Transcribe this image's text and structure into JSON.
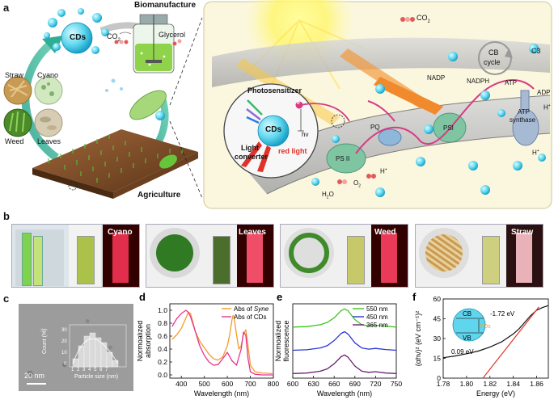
{
  "panel_a": {
    "label": "a",
    "biomanufacture": "Biomanufacture",
    "agriculture": "Agriculture",
    "cds": "CDs",
    "co2_left": "CO",
    "co2_sub": "2",
    "glycerol": "Glycerol",
    "sources": [
      "Straw",
      "Cyano",
      "Weed",
      "Leaves"
    ],
    "inset": {
      "photosensitizer": "Photosensitizer",
      "cds": "CDs",
      "light_converter_1": "Light",
      "light_converter_2": "converter",
      "hv": "hν",
      "red_light": "red light",
      "e": "e"
    },
    "pathway": {
      "co2": "CO",
      "co2_sub": "2",
      "cb_cycle_1": "CB",
      "cb_cycle_2": "cycle",
      "c3": "C3",
      "nadp": "NADP",
      "nadph": "NADPH",
      "atp": "ATP",
      "adp": "ADP",
      "atp_synthase_1": "ATP",
      "atp_synthase_2": "synthase",
      "psi": "PSI",
      "psii": "PS II",
      "pq": "PQ",
      "h2o": "H",
      "h2o_sub": "2",
      "h2o_o": "O",
      "o2": "O",
      "o2_sub": "2",
      "h": "H",
      "h_plus": "+"
    }
  },
  "panel_b": {
    "label": "b",
    "tiles": [
      "Cyano",
      "Leaves",
      "Weed",
      "Straw"
    ]
  },
  "panel_c": {
    "label": "c",
    "scale_bar": "20 nm",
    "inset_ylabel": "Count (%)",
    "inset_xlabel": "Particle size (nm)",
    "inset_yticks": [
      "0",
      "10",
      "20",
      "30"
    ],
    "inset_xticks": [
      "1",
      "2",
      "3",
      "4",
      "5",
      "6",
      "7"
    ]
  },
  "colors": {
    "orange": "#f39c2a",
    "magenta": "#e8338f",
    "green": "#3ec61d",
    "blue": "#2a36d4",
    "purple": "#6a1f74",
    "red": "#e0392b",
    "black": "#111111"
  },
  "chart_data": [
    {
      "id": "d",
      "label": "d",
      "type": "line",
      "xlabel": "Wavelength (nm)",
      "ylabel": "Normoalized absorption",
      "xlim": [
        350,
        800
      ],
      "ylim": [
        -0.05,
        1.1
      ],
      "xticks": [
        400,
        500,
        600,
        700,
        800
      ],
      "yticks": [
        0.0,
        0.2,
        0.4,
        0.6,
        0.8,
        1.0
      ],
      "legend_position": "top-right",
      "legend": [
        {
          "prefix": "Abs of ",
          "italic": "Syne",
          "color": "#f39c2a"
        },
        {
          "prefix": "Abs of CDs",
          "italic": "",
          "color": "#e8338f"
        }
      ],
      "series": [
        {
          "name": "Abs of Syne",
          "color": "#f39c2a",
          "x": [
            360,
            380,
            400,
            420,
            430,
            440,
            450,
            460,
            480,
            500,
            520,
            540,
            560,
            580,
            600,
            610,
            620,
            625,
            630,
            640,
            650,
            660,
            670,
            680,
            690,
            700,
            720,
            750,
            800
          ],
          "y": [
            0.55,
            0.62,
            0.72,
            0.88,
            0.97,
            0.95,
            0.82,
            0.68,
            0.52,
            0.42,
            0.32,
            0.25,
            0.23,
            0.28,
            0.45,
            0.62,
            0.85,
            0.92,
            0.88,
            0.62,
            0.4,
            0.45,
            0.62,
            0.7,
            0.45,
            0.15,
            0.05,
            0.03,
            0.02
          ]
        },
        {
          "name": "Abs of CDs",
          "color": "#e8338f",
          "x": [
            360,
            380,
            400,
            420,
            430,
            440,
            460,
            480,
            500,
            520,
            540,
            560,
            580,
            600,
            620,
            640,
            660,
            670,
            680,
            690,
            700,
            720,
            750,
            800
          ],
          "y": [
            0.75,
            0.87,
            0.95,
            1.0,
            0.97,
            0.9,
            0.68,
            0.45,
            0.3,
            0.2,
            0.15,
            0.16,
            0.25,
            0.35,
            0.22,
            0.15,
            0.4,
            0.66,
            0.62,
            0.25,
            0.05,
            0.01,
            0.0,
            0.0
          ]
        }
      ]
    },
    {
      "id": "e",
      "label": "e",
      "type": "line",
      "xlabel": "Wavelength (nm)",
      "ylabel": "Normoalized fluorescence",
      "xlim": [
        600,
        750
      ],
      "xticks": [
        600,
        630,
        660,
        690,
        720,
        750
      ],
      "legend_position": "top-right",
      "series": [
        {
          "name": "550 nm",
          "color": "#3ec61d",
          "x": [
            600,
            620,
            640,
            650,
            660,
            670,
            675,
            680,
            690,
            700,
            710,
            720,
            735,
            750
          ],
          "y": [
            2.2,
            2.22,
            2.3,
            2.4,
            2.6,
            2.9,
            2.98,
            2.9,
            2.52,
            2.3,
            2.25,
            2.28,
            2.24,
            2.2
          ]
        },
        {
          "name": "450 nm",
          "color": "#2a36d4",
          "x": [
            600,
            620,
            640,
            650,
            660,
            670,
            675,
            680,
            690,
            700,
            710,
            720,
            735,
            750
          ],
          "y": [
            1.2,
            1.22,
            1.3,
            1.4,
            1.62,
            1.92,
            2.0,
            1.9,
            1.52,
            1.3,
            1.25,
            1.28,
            1.23,
            1.2
          ]
        },
        {
          "name": "365 nm",
          "color": "#6a1f74",
          "x": [
            600,
            620,
            640,
            650,
            660,
            670,
            675,
            680,
            690,
            700,
            710,
            720,
            735,
            750
          ],
          "y": [
            0.2,
            0.22,
            0.3,
            0.4,
            0.62,
            0.92,
            1.0,
            0.9,
            0.52,
            0.3,
            0.25,
            0.28,
            0.22,
            0.2
          ]
        }
      ]
    },
    {
      "id": "f",
      "label": "f",
      "type": "line",
      "xlabel": "Energy (eV)",
      "ylabel": "(αhν)² (eV cm⁻¹)²",
      "xlim": [
        1.78,
        1.87
      ],
      "ylim": [
        0,
        60
      ],
      "xticks": [
        1.78,
        1.8,
        1.82,
        1.84,
        1.86
      ],
      "yticks": [
        0,
        15,
        30,
        45,
        60
      ],
      "annotations": [
        "CB",
        "VB",
        "CDs",
        "-1.72 eV",
        "0.09 eV"
      ],
      "series": [
        {
          "name": "",
          "color": "#111111",
          "x": [
            1.78,
            1.79,
            1.8,
            1.81,
            1.82,
            1.83,
            1.84,
            1.845,
            1.85,
            1.855,
            1.86,
            1.865,
            1.87
          ],
          "y": [
            15.5,
            16.8,
            18.5,
            20.5,
            23.5,
            27.5,
            33.5,
            37.5,
            42.5,
            47.5,
            51.5,
            53.5,
            55.0
          ]
        },
        {
          "name": "",
          "color": "#e0392b",
          "x": [
            1.814,
            1.862
          ],
          "y": [
            0,
            54
          ]
        }
      ]
    }
  ]
}
